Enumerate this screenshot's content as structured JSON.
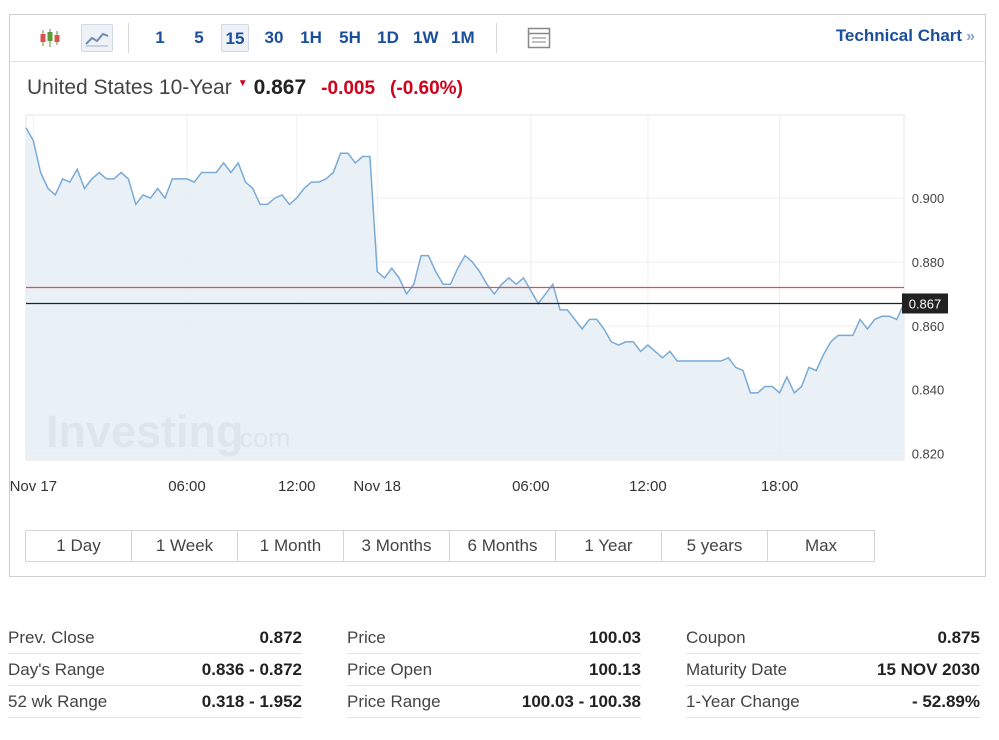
{
  "toolbar": {
    "chart_type_icons": [
      "candlestick-icon",
      "line-chart-icon"
    ],
    "intervals": [
      "1",
      "5",
      "15",
      "30",
      "1H",
      "5H",
      "1D",
      "1W",
      "1M"
    ],
    "active_interval": "15",
    "table_icon": "table-view-icon",
    "technical_link": "Technical Chart",
    "technical_link_chevron": "»"
  },
  "quote": {
    "name": "United States 10-Year",
    "direction_icon": "down-arrow-icon",
    "last": "0.867",
    "change": "-0.005",
    "change_pct": "(-0.60%)"
  },
  "colors": {
    "accent_blue": "#1b4f9b",
    "negative_red": "#d0021b",
    "series_line": "#7aaad6",
    "series_fill": "#e6eef4",
    "prev_close_line": "#d9534f"
  },
  "chart_data": {
    "type": "area",
    "title": "",
    "xlabel": "",
    "ylabel": "",
    "ylim": [
      0.818,
      0.926
    ],
    "yticks": [
      "0.900",
      "0.880",
      "0.860",
      "0.840",
      "0.820"
    ],
    "ytick_values": [
      0.9,
      0.88,
      0.86,
      0.84,
      0.82
    ],
    "xticks": [
      "Nov 17",
      "06:00",
      "12:00",
      "Nov 18",
      "06:00",
      "12:00",
      "18:00"
    ],
    "xtick_index": [
      1,
      22,
      37,
      48,
      69,
      85,
      103
    ],
    "last_price": 0.867,
    "last_price_label": "0.867",
    "prev_close": 0.872,
    "watermark": "Investing",
    "watermark_suffix": ".com",
    "grid": true,
    "values": [
      0.922,
      0.918,
      0.908,
      0.903,
      0.901,
      0.906,
      0.905,
      0.909,
      0.903,
      0.906,
      0.908,
      0.906,
      0.906,
      0.908,
      0.906,
      0.898,
      0.901,
      0.9,
      0.903,
      0.9,
      0.906,
      0.906,
      0.906,
      0.905,
      0.908,
      0.908,
      0.908,
      0.911,
      0.908,
      0.911,
      0.905,
      0.903,
      0.898,
      0.898,
      0.9,
      0.901,
      0.898,
      0.9,
      0.903,
      0.905,
      0.905,
      0.906,
      0.908,
      0.914,
      0.914,
      0.911,
      0.913,
      0.913,
      0.877,
      0.875,
      0.878,
      0.875,
      0.87,
      0.873,
      0.882,
      0.882,
      0.877,
      0.873,
      0.873,
      0.878,
      0.882,
      0.88,
      0.877,
      0.873,
      0.87,
      0.873,
      0.875,
      0.873,
      0.875,
      0.871,
      0.867,
      0.87,
      0.873,
      0.865,
      0.865,
      0.862,
      0.859,
      0.862,
      0.862,
      0.859,
      0.855,
      0.854,
      0.855,
      0.855,
      0.852,
      0.854,
      0.852,
      0.85,
      0.852,
      0.849,
      0.849,
      0.849,
      0.849,
      0.849,
      0.849,
      0.849,
      0.85,
      0.847,
      0.846,
      0.839,
      0.839,
      0.841,
      0.841,
      0.839,
      0.844,
      0.839,
      0.841,
      0.847,
      0.846,
      0.851,
      0.855,
      0.857,
      0.857,
      0.857,
      0.862,
      0.859,
      0.862,
      0.863,
      0.863,
      0.862,
      0.867
    ]
  },
  "ranges": [
    "1 Day",
    "1 Week",
    "1 Month",
    "3 Months",
    "6 Months",
    "1 Year",
    "5 years",
    "Max"
  ],
  "stats": [
    [
      {
        "label": "Prev. Close",
        "value": "0.872"
      },
      {
        "label": "Day's Range",
        "value": "0.836 - 0.872"
      },
      {
        "label": "52 wk Range",
        "value": "0.318 - 1.952"
      }
    ],
    [
      {
        "label": "Price",
        "value": "100.03"
      },
      {
        "label": "Price Open",
        "value": "100.13"
      },
      {
        "label": "Price Range",
        "value": "100.03 - 100.38"
      }
    ],
    [
      {
        "label": "Coupon",
        "value": "0.875"
      },
      {
        "label": "Maturity Date",
        "value": "15 NOV 2030"
      },
      {
        "label": "1-Year Change",
        "value": "- 52.89%"
      }
    ]
  ]
}
